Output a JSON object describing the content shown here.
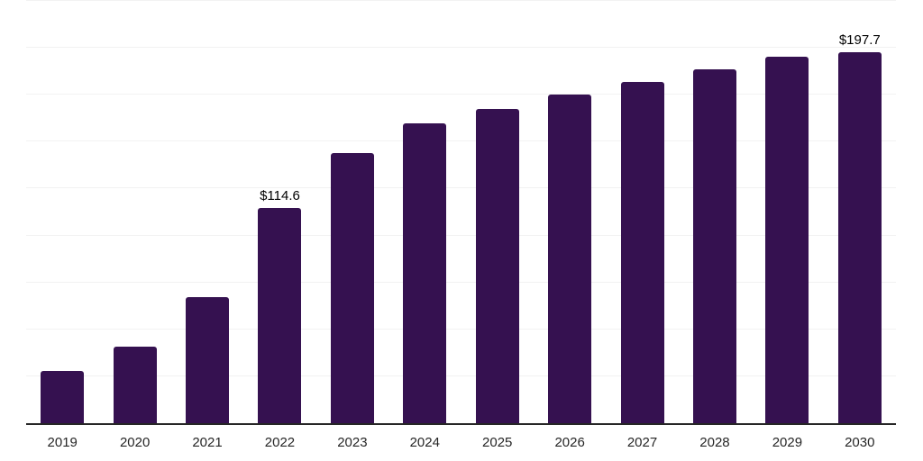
{
  "chart_data": {
    "type": "bar",
    "title": "",
    "xlabel": "",
    "ylabel": "",
    "categories": [
      "2019",
      "2020",
      "2021",
      "2022",
      "2023",
      "2024",
      "2025",
      "2026",
      "2027",
      "2028",
      "2029",
      "2030"
    ],
    "values": [
      27.8,
      40.8,
      67.2,
      114.6,
      143.9,
      159.8,
      167.4,
      175.1,
      181.8,
      188.5,
      195.2,
      197.7
    ],
    "data_labels": {
      "2022": "$114.6",
      "2030": "$197.7"
    },
    "ylim": [
      0,
      225
    ],
    "gridline_interval": 25,
    "grid": "horizontal",
    "legend": "none"
  },
  "style": {
    "bar_color": "#351150",
    "axis_color": "#262626",
    "gridline_color": "#f2f2f2",
    "value_label_color": "#000000",
    "tick_label_color": "#262626",
    "background": "#ffffff"
  }
}
